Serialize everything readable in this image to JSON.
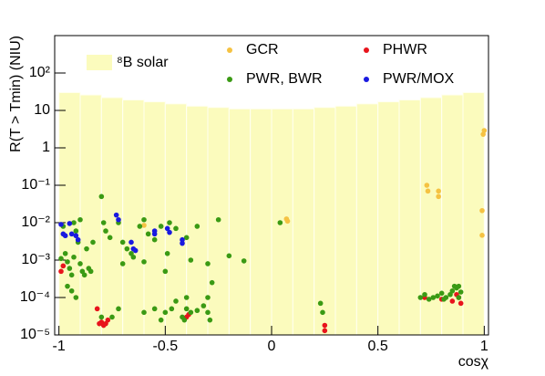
{
  "chart_data": {
    "type": "scatter",
    "xlabel": "cosχ",
    "ylabel": "R(T > Tmin) (NIU)",
    "xlim": [
      -1.02,
      1.02
    ],
    "xticks": [
      -1,
      -0.5,
      0,
      0.5,
      1
    ],
    "ylim": [
      1e-05,
      1000
    ],
    "log_y": true,
    "yticks": [
      {
        "value": 1e-05,
        "label": "10⁻⁵"
      },
      {
        "value": 0.0001,
        "label": "10⁻⁴"
      },
      {
        "value": 0.001,
        "label": "10⁻³"
      },
      {
        "value": 0.01,
        "label": "10⁻²"
      },
      {
        "value": 0.1,
        "label": "10⁻¹"
      },
      1,
      10,
      {
        "value": 100,
        "label": "10²"
      }
    ],
    "legend": "top",
    "histogram": {
      "name": "⁸B solar",
      "color": "#fbfbbd",
      "bins": [
        -1,
        -0.9,
        -0.8,
        -0.7,
        -0.6,
        -0.5,
        -0.4,
        -0.3,
        -0.2,
        -0.1,
        0,
        0.1,
        0.2,
        0.3,
        0.4,
        0.5,
        0.6,
        0.7,
        0.8,
        0.9,
        1
      ],
      "counts": [
        30,
        26,
        22,
        19,
        17,
        15,
        13,
        12,
        11,
        11,
        11,
        11,
        12,
        13,
        15,
        17,
        19,
        22,
        26,
        30
      ]
    },
    "series": [
      {
        "name": "GCR",
        "color": "#f5c242",
        "x": [
          1.0,
          0.995,
          0.99,
          0.99,
          0.73,
          0.735,
          0.785,
          0.785,
          0.07,
          0.075,
          -0.6
        ],
        "values": [
          2.9,
          2.3,
          0.021,
          0.0046,
          0.1,
          0.07,
          0.07,
          0.05,
          0.0126,
          0.011,
          0.0085
        ]
      },
      {
        "name": "PHWR",
        "color": "#e8141c",
        "x": [
          -0.99,
          -0.98,
          -0.82,
          -0.81,
          -0.8,
          -0.79,
          -0.78,
          -0.77,
          -0.4,
          -0.39,
          0.25,
          0.25,
          0.72,
          0.8,
          0.85,
          0.87,
          0.88,
          0.89
        ],
        "values": [
          0.0005,
          0.0007,
          5e-05,
          2e-05,
          2.2e-05,
          1.8e-05,
          2e-05,
          2.5e-05,
          3e-05,
          3.5e-05,
          1.8e-05,
          1.3e-05,
          0.0001,
          9e-05,
          8e-05,
          0.00012,
          0.0001,
          7e-05
        ]
      },
      {
        "name": "PWR, BWR",
        "color": "#3a9a14",
        "x": [
          -0.98,
          -0.97,
          -0.96,
          -0.95,
          -0.94,
          -0.93,
          -0.92,
          -0.91,
          -0.9,
          -0.89,
          -0.88,
          -0.87,
          -0.86,
          -0.85,
          -0.84,
          -0.92,
          -0.94,
          -0.96,
          -0.99,
          -0.93,
          -0.9,
          -0.8,
          -0.79,
          -0.78,
          -0.76,
          -0.72,
          -0.7,
          -0.7,
          -0.68,
          -0.66,
          -0.65,
          -0.62,
          -0.6,
          -0.6,
          -0.58,
          -0.55,
          -0.52,
          -0.5,
          -0.49,
          -0.48,
          -0.45,
          -0.4,
          -0.38,
          -0.35,
          -0.3,
          -0.28,
          -0.25,
          -0.2,
          -0.3,
          -0.4,
          -0.45,
          -0.8,
          -0.75,
          -0.72,
          -0.6,
          -0.55,
          -0.52,
          -0.5,
          -0.47,
          -0.42,
          -0.4,
          -0.38,
          -0.35,
          -0.32,
          -0.3,
          -0.29,
          -0.41,
          0.04,
          -0.13,
          0.23,
          0.24,
          0.7,
          0.72,
          0.74,
          0.76,
          0.78,
          0.8,
          0.82,
          0.84,
          0.85,
          0.86,
          0.87,
          0.88,
          0.89,
          0.88,
          0.81
        ],
        "values": [
          0.008,
          0.0015,
          0.0009,
          0.0006,
          0.0004,
          0.0012,
          0.006,
          0.003,
          0.0008,
          0.0005,
          0.0004,
          0.002,
          0.0006,
          0.0005,
          0.003,
          0.0001,
          0.00015,
          0.0002,
          0.0011,
          0.01,
          0.012,
          0.05,
          0.01,
          0.006,
          0.004,
          0.01,
          0.003,
          0.0008,
          0.002,
          0.0015,
          0.0012,
          0.008,
          0.0009,
          0.012,
          0.005,
          0.0035,
          0.008,
          0.0005,
          0.0015,
          0.01,
          0.007,
          0.004,
          0.001,
          0.008,
          0.0008,
          0.00025,
          0.012,
          0.0013,
          0.0001,
          0.0001,
          8e-05,
          3e-05,
          3e-05,
          5e-05,
          4e-05,
          5e-05,
          2.5e-05,
          4e-05,
          5e-05,
          3e-05,
          5e-05,
          4e-05,
          4.5e-05,
          6e-05,
          4e-05,
          2.5e-05,
          2.5e-05,
          0.01,
          0.00095,
          7e-05,
          4e-05,
          0.0001,
          0.00012,
          9e-05,
          0.0001,
          0.00011,
          0.00013,
          0.0001,
          0.00012,
          0.00015,
          0.0002,
          0.00018,
          0.0002,
          0.00014,
          0.0001,
          9e-05
        ]
      },
      {
        "name": "PWR/MOX",
        "color": "#1a1ae0",
        "x": [
          -0.99,
          -0.98,
          -0.97,
          -0.95,
          -0.94,
          -0.92,
          -0.91,
          -0.73,
          -0.72,
          -0.66,
          -0.65,
          -0.64,
          -0.55,
          -0.55,
          -0.49,
          -0.48,
          -0.42,
          -0.42
        ],
        "values": [
          0.009,
          0.005,
          0.0045,
          0.0095,
          0.005,
          0.0045,
          0.0035,
          0.016,
          0.012,
          0.003,
          0.002,
          0.0018,
          0.005,
          0.006,
          0.007,
          0.0055,
          0.0035,
          0.0028
        ]
      }
    ]
  }
}
